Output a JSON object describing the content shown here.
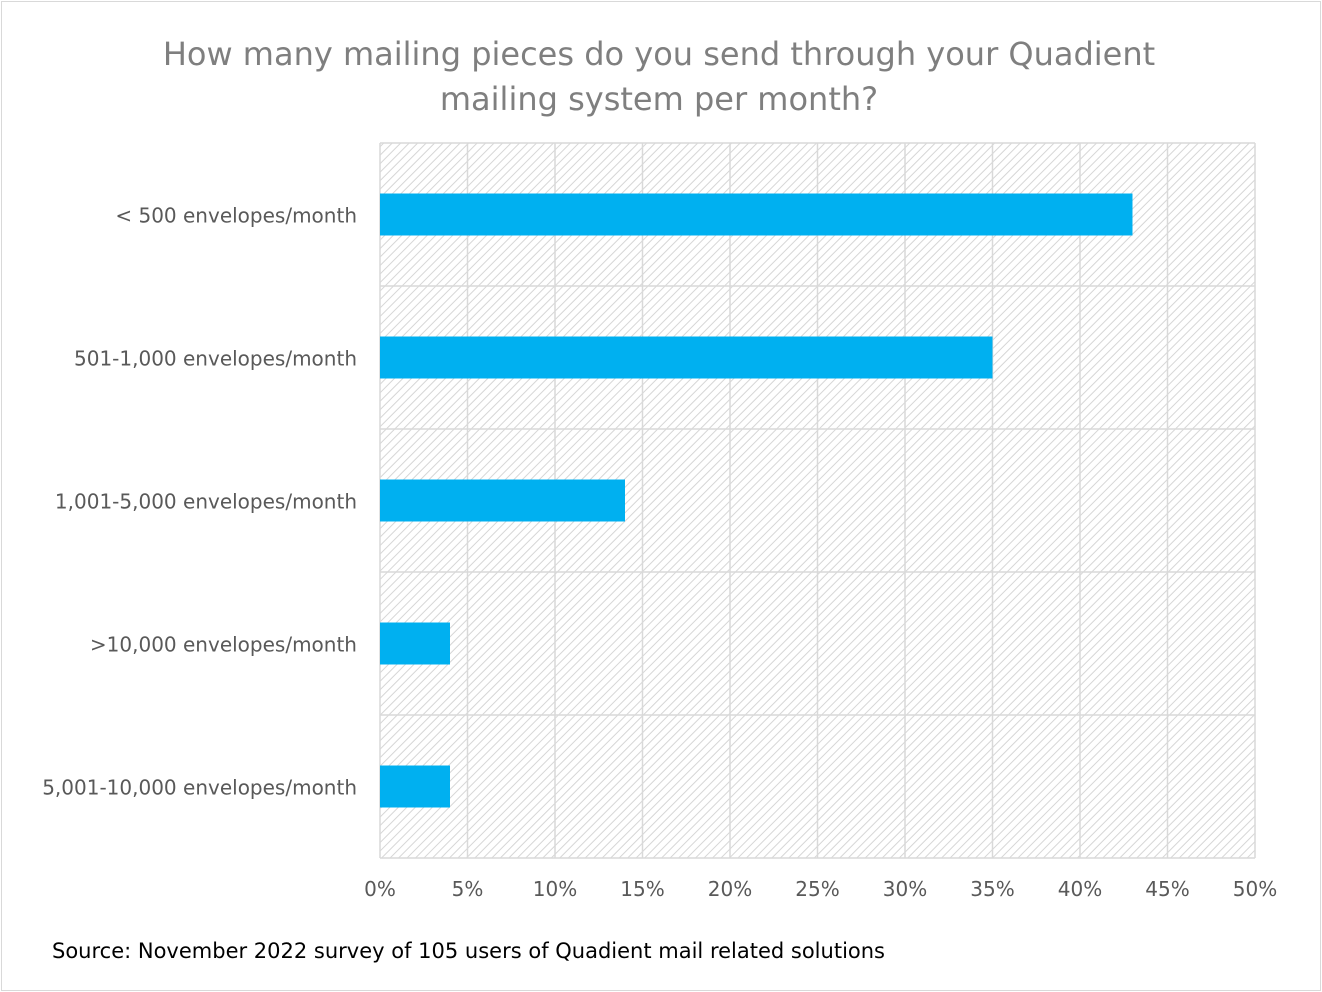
{
  "chart_data": {
    "type": "bar",
    "orientation": "horizontal",
    "title": "How many mailing pieces do you send through your Quadient mailing system per month?",
    "categories": [
      "< 500 envelopes/month",
      "501-1,000 envelopes/month",
      "1,001-5,000 envelopes/month",
      ">10,000 envelopes/month",
      "5,001-10,000 envelopes/month"
    ],
    "values": [
      43,
      35,
      14,
      4,
      4
    ],
    "xlim": [
      0,
      50
    ],
    "xticks": [
      0,
      5,
      10,
      15,
      20,
      25,
      30,
      35,
      40,
      45,
      50
    ],
    "tick_suffix": "%",
    "bar_color": "#00b0f0",
    "grid": true,
    "plot_background": "hatched light gray",
    "legend": "none"
  },
  "source_note": "Source: November 2022 survey of 105 users of Quadient mail related solutions"
}
